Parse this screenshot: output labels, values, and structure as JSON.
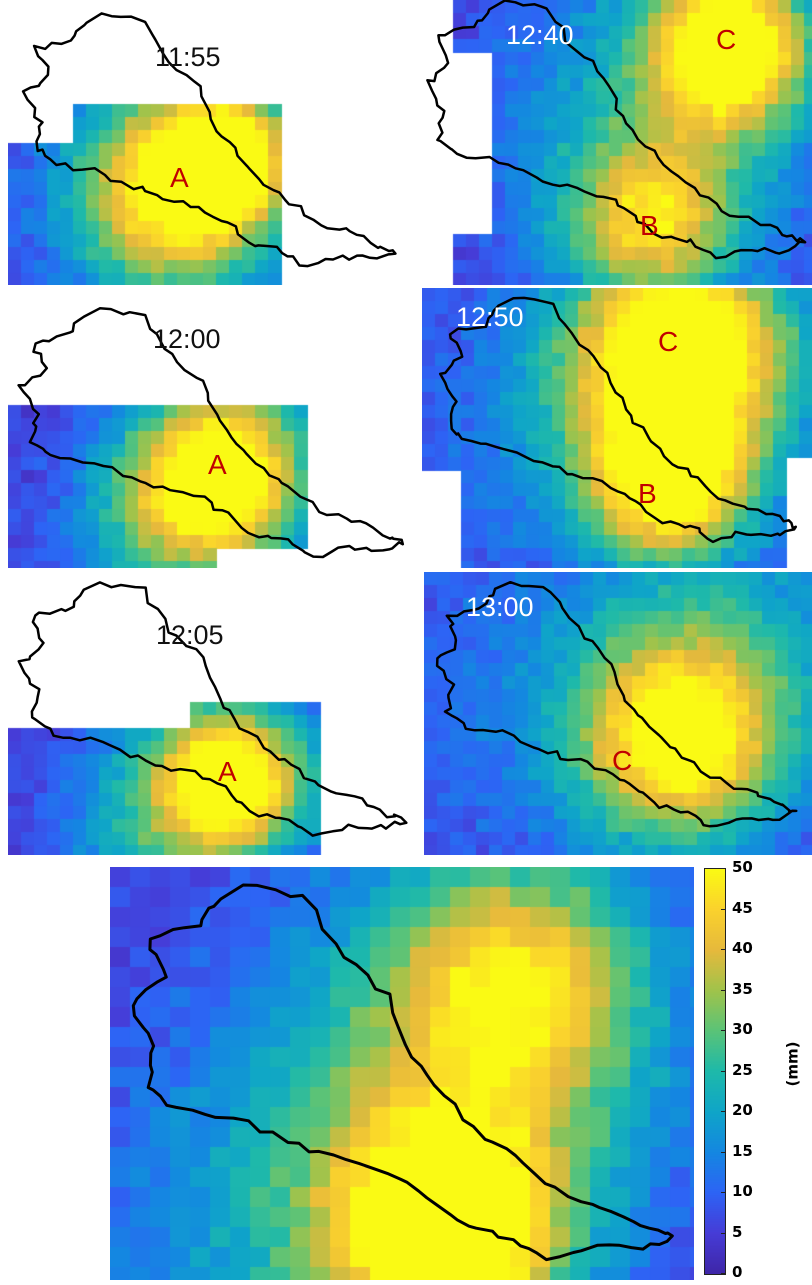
{
  "panels": [
    {
      "id": "p1155",
      "time": "11:55",
      "time_color": "#111111",
      "storms": [
        {
          "label": "A"
        }
      ]
    },
    {
      "id": "p1240",
      "time": "12:40",
      "time_color": "#ffffff",
      "storms": [
        {
          "label": "B"
        },
        {
          "label": "C"
        }
      ]
    },
    {
      "id": "p1200",
      "time": "12:00",
      "time_color": "#111111",
      "storms": [
        {
          "label": "A"
        }
      ]
    },
    {
      "id": "p1250",
      "time": "12:50",
      "time_color": "#ffffff",
      "storms": [
        {
          "label": "B"
        },
        {
          "label": "C"
        }
      ]
    },
    {
      "id": "p1205",
      "time": "12:05",
      "time_color": "#111111",
      "storms": [
        {
          "label": "A"
        }
      ]
    },
    {
      "id": "p1300",
      "time": "13:00",
      "time_color": "#ffffff",
      "storms": [
        {
          "label": "C"
        }
      ]
    }
  ],
  "colorbar": {
    "ticks": [
      "50",
      "45",
      "40",
      "35",
      "30",
      "25",
      "20",
      "15",
      "10",
      "5",
      "0"
    ],
    "unit": "(mm)",
    "colormap": "parula",
    "range_mm": [
      0,
      50
    ]
  },
  "colors": {
    "storm_label": "#c00000",
    "boundary": "#000000",
    "no_data": "#ffffff"
  }
}
